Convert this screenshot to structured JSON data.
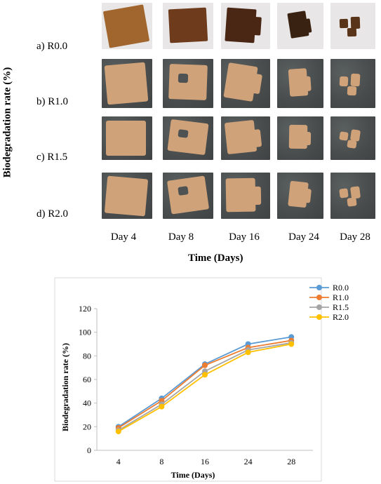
{
  "figure": {
    "y_axis_label": "Biodegradation rate (%)",
    "x_axis_label": "Time (Days)",
    "rows": [
      {
        "label": "a) R0.0",
        "background": "light"
      },
      {
        "label": "b) R1.0",
        "background": "dark"
      },
      {
        "label": "c) R1.5",
        "background": "dark"
      },
      {
        "label": "d)  R2.0",
        "background": "dark"
      }
    ],
    "days": [
      "Day 4",
      "Day 8",
      "Day 16",
      "Day 24",
      "Day 28"
    ]
  },
  "chart_data": {
    "type": "line",
    "xlabel": "Time (Days)",
    "ylabel": "Biodegradation rate (%)",
    "categories": [
      "4",
      "8",
      "16",
      "24",
      "28"
    ],
    "ylim": [
      0,
      120
    ],
    "yticks": [
      0,
      20,
      40,
      60,
      80,
      100,
      120
    ],
    "grid": false,
    "legend_position": "top-right",
    "series": [
      {
        "name": "R0.0",
        "values": [
          20,
          44,
          73,
          90,
          96
        ],
        "color": "#5b9bd5"
      },
      {
        "name": "R1.0",
        "values": [
          19,
          42,
          72,
          87,
          93
        ],
        "color": "#ed7d31"
      },
      {
        "name": "R1.5",
        "values": [
          17,
          39,
          67,
          85,
          91
        ],
        "color": "#a5a5a5"
      },
      {
        "name": "R2.0",
        "values": [
          16,
          37,
          64,
          83,
          90
        ],
        "color": "#ffc000"
      }
    ]
  }
}
